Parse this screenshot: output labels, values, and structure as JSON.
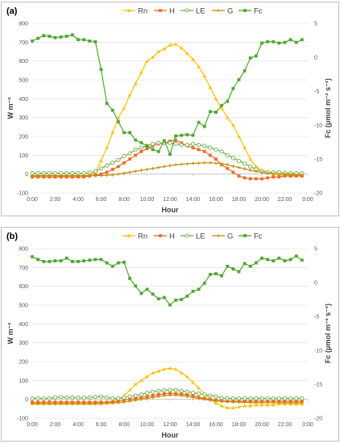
{
  "chart_data": [
    {
      "type": "line",
      "panel_label": "(a)",
      "xlabel": "Hour",
      "ylabel_left": "W m⁻²",
      "ylabel_right": "Fc (μmol m⁻² s⁻¹)",
      "x_ticks": [
        "0:00",
        "2:00",
        "4:00",
        "6:00",
        "8:00",
        "10:00",
        "12:00",
        "14:00",
        "16:00",
        "18:00",
        "20:00",
        "22:00",
        "0:00"
      ],
      "y_left_ticks": [
        "-100",
        "0",
        "100",
        "200",
        "300",
        "400",
        "500",
        "600",
        "700",
        "800"
      ],
      "y_right_ticks": [
        "-20",
        "-15",
        "-10",
        "-5",
        "0",
        "5"
      ],
      "ylim_left": [
        -100,
        800
      ],
      "ylim_right": [
        -20,
        5
      ],
      "grid": true,
      "legend_position": "top",
      "x": [
        0,
        0.5,
        1,
        1.5,
        2,
        2.5,
        3,
        3.5,
        4,
        4.5,
        5,
        5.5,
        6,
        6.5,
        7,
        7.5,
        8,
        8.5,
        9,
        9.5,
        10,
        10.5,
        11,
        11.5,
        12,
        12.5,
        13,
        13.5,
        14,
        14.5,
        15,
        15.5,
        16,
        16.5,
        17,
        17.5,
        18,
        18.5,
        19,
        19.5,
        20,
        20.5,
        21,
        21.5,
        22,
        22.5,
        23,
        23.5
      ],
      "series": [
        {
          "name": "Rn",
          "color": "#ffc000",
          "marker": "triangle",
          "axis": "left",
          "values": [
            -10,
            -10,
            -10,
            -10,
            -10,
            -10,
            -10,
            -10,
            -10,
            -10,
            -5,
            10,
            70,
            140,
            220,
            300,
            350,
            420,
            480,
            540,
            600,
            620,
            650,
            665,
            685,
            690,
            670,
            640,
            610,
            570,
            520,
            460,
            400,
            350,
            300,
            260,
            200,
            140,
            80,
            40,
            20,
            10,
            0,
            -5,
            -5,
            -8,
            -8,
            -10
          ]
        },
        {
          "name": "H",
          "color": "#ed6d2a",
          "marker": "square",
          "axis": "left",
          "values": [
            -15,
            -15,
            -15,
            -15,
            -15,
            -15,
            -15,
            -15,
            -15,
            -15,
            -10,
            -5,
            0,
            10,
            25,
            40,
            60,
            80,
            100,
            120,
            135,
            150,
            160,
            165,
            175,
            180,
            165,
            150,
            140,
            130,
            120,
            100,
            80,
            50,
            30,
            10,
            -10,
            -20,
            -25,
            -25,
            -25,
            -20,
            -15,
            -15,
            -10,
            -10,
            -10,
            -10
          ]
        },
        {
          "name": "LE",
          "color": "#70ad47",
          "marker": "circle-open",
          "axis": "left",
          "values": [
            5,
            5,
            5,
            5,
            5,
            5,
            5,
            5,
            5,
            5,
            8,
            15,
            30,
            45,
            60,
            75,
            95,
            110,
            130,
            140,
            150,
            160,
            165,
            165,
            165,
            160,
            155,
            155,
            160,
            155,
            150,
            140,
            130,
            120,
            100,
            85,
            70,
            55,
            40,
            25,
            15,
            10,
            10,
            10,
            5,
            5,
            5,
            5
          ]
        },
        {
          "name": "G",
          "color": "#c58c00",
          "marker": "plus",
          "axis": "left",
          "values": [
            -8,
            -8,
            -8,
            -8,
            -8,
            -8,
            -8,
            -8,
            -8,
            -8,
            -8,
            -8,
            -8,
            -6,
            -4,
            0,
            5,
            10,
            15,
            20,
            25,
            30,
            35,
            40,
            45,
            50,
            52,
            55,
            57,
            58,
            60,
            60,
            58,
            55,
            50,
            42,
            35,
            28,
            20,
            14,
            8,
            4,
            2,
            0,
            0,
            -2,
            -4,
            -5
          ]
        },
        {
          "name": "Fc",
          "color": "#4ea72e",
          "marker": "square",
          "axis": "right",
          "values": [
            2.4,
            2.8,
            3.2,
            3.1,
            2.9,
            3.0,
            3.1,
            3.3,
            2.6,
            2.6,
            2.4,
            2.3,
            -1.8,
            -6.8,
            -7.8,
            -9.5,
            -11.1,
            -11.1,
            -12.2,
            -12.6,
            -13.1,
            -13.6,
            -13.9,
            -12.3,
            -14.3,
            -11.6,
            -11.5,
            -11.4,
            -11.5,
            -9.6,
            -10.2,
            -8.0,
            -8.1,
            -7.1,
            -6.5,
            -4.6,
            -3.3,
            -2.0,
            -0.1,
            0.2,
            2.1,
            2.3,
            2.3,
            2.1,
            2.2,
            2.6,
            2.2,
            2.6
          ]
        }
      ]
    },
    {
      "type": "line",
      "panel_label": "(b)",
      "xlabel": "Hour",
      "ylabel_left": "W m⁻²",
      "ylabel_right": "Fc (μmol m⁻² s⁻¹)",
      "x_ticks": [
        "0:00",
        "2:00",
        "4:00",
        "6:00",
        "8:00",
        "10:00",
        "12:00",
        "14:00",
        "16:00",
        "18:00",
        "20:00",
        "22:00",
        "0:00"
      ],
      "y_left_ticks": [
        "-100",
        "0",
        "100",
        "200",
        "300",
        "400",
        "500",
        "600",
        "700",
        "800"
      ],
      "y_right_ticks": [
        "-20",
        "-15",
        "-10",
        "-5",
        "0",
        "5"
      ],
      "ylim_left": [
        -100,
        800
      ],
      "ylim_right": [
        -20,
        5
      ],
      "grid": true,
      "legend_position": "top",
      "x": [
        0,
        0.5,
        1,
        1.5,
        2,
        2.5,
        3,
        3.5,
        4,
        4.5,
        5,
        5.5,
        6,
        6.5,
        7,
        7.5,
        8,
        8.5,
        9,
        9.5,
        10,
        10.5,
        11,
        11.5,
        12,
        12.5,
        13,
        13.5,
        14,
        14.5,
        15,
        15.5,
        16,
        16.5,
        17,
        17.5,
        18,
        18.5,
        19,
        19.5,
        20,
        20.5,
        21,
        21.5,
        22,
        22.5,
        23,
        23.5
      ],
      "series": [
        {
          "name": "Rn",
          "color": "#ffc000",
          "marker": "triangle",
          "axis": "left",
          "values": [
            -20,
            -20,
            -20,
            -20,
            -20,
            -20,
            -20,
            -20,
            -20,
            -20,
            -20,
            -20,
            -18,
            -15,
            -10,
            0,
            20,
            50,
            80,
            100,
            120,
            140,
            150,
            160,
            165,
            160,
            140,
            120,
            90,
            60,
            30,
            0,
            -20,
            -35,
            -45,
            -45,
            -40,
            -35,
            -35,
            -30,
            -30,
            -30,
            -30,
            -25,
            -25,
            -25,
            -25,
            -25
          ]
        },
        {
          "name": "H",
          "color": "#ed6d2a",
          "marker": "square",
          "axis": "left",
          "values": [
            -15,
            -15,
            -15,
            -15,
            -15,
            -15,
            -15,
            -15,
            -15,
            -15,
            -15,
            -15,
            -15,
            -15,
            -15,
            -10,
            -5,
            0,
            5,
            10,
            15,
            20,
            25,
            30,
            32,
            30,
            28,
            25,
            20,
            10,
            5,
            0,
            -5,
            -8,
            -10,
            -10,
            -10,
            -10,
            -10,
            -10,
            -10,
            -10,
            -10,
            -10,
            -10,
            -10,
            -10,
            -10
          ]
        },
        {
          "name": "LE",
          "color": "#70ad47",
          "marker": "circle-open",
          "axis": "left",
          "values": [
            5,
            5,
            5,
            5,
            10,
            12,
            10,
            10,
            8,
            8,
            10,
            12,
            15,
            10,
            5,
            5,
            10,
            15,
            20,
            25,
            35,
            40,
            45,
            48,
            50,
            50,
            45,
            40,
            35,
            30,
            25,
            20,
            15,
            8,
            5,
            5,
            5,
            5,
            5,
            5,
            5,
            5,
            5,
            5,
            5,
            5,
            5,
            5
          ]
        },
        {
          "name": "G",
          "color": "#c58c00",
          "marker": "plus",
          "axis": "left",
          "values": [
            -25,
            -25,
            -25,
            -25,
            -25,
            -25,
            -25,
            -25,
            -25,
            -25,
            -25,
            -25,
            -25,
            -22,
            -20,
            -18,
            -15,
            -10,
            -5,
            0,
            5,
            10,
            15,
            20,
            22,
            22,
            20,
            15,
            10,
            5,
            0,
            -5,
            -8,
            -10,
            -12,
            -14,
            -15,
            -16,
            -17,
            -18,
            -18,
            -18,
            -18,
            -18,
            -18,
            -18,
            -18,
            -18
          ]
        },
        {
          "name": "Fc",
          "color": "#4ea72e",
          "marker": "square",
          "axis": "right",
          "values": [
            3.8,
            3.4,
            3.1,
            3.1,
            3.2,
            3.2,
            3.6,
            3.1,
            3.1,
            3.2,
            3.3,
            3.4,
            3.4,
            2.9,
            2.4,
            2.9,
            3.0,
            0.6,
            -0.5,
            -1.6,
            -1.0,
            -1.7,
            -2.4,
            -2.2,
            -3.3,
            -2.6,
            -2.5,
            -2.0,
            -1.3,
            -1.0,
            -0.1,
            1.2,
            1.3,
            1.0,
            2.4,
            2.0,
            1.6,
            2.8,
            2.4,
            2.9,
            3.6,
            3.4,
            3.2,
            3.6,
            3.2,
            3.4,
            3.9,
            3.3
          ]
        }
      ]
    }
  ]
}
